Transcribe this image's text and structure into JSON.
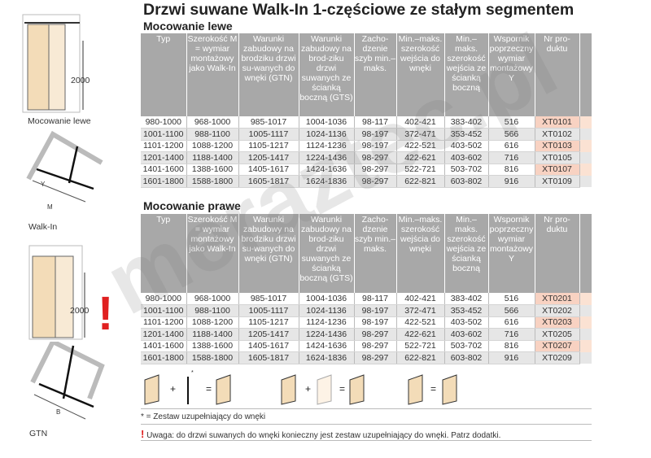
{
  "title": "Drzwi suwane Walk-In 1-częściowe ze stałym segmentem",
  "headers": [
    "Typ",
    "Szerokość M = wymiar montażowy jako Walk-In",
    "Warunki zabudowy na brodziku drzwi su-wanych do wnęki (GTN)",
    "Warunki zabudowy na brod-ziku drzwi suwanych ze ścianką boczną (GTS)",
    "Zacho-dzenie szyb min.–maks.",
    "Min.–maks. szerokość wejścia do wnęki",
    "Min.–maks. szerokość wejścia ze ścianką boczną",
    "Wspornik poprzeczny wymiar montażowy Y",
    "Nr pro-duktu"
  ],
  "sections": [
    {
      "heading": "Mocowanie lewe",
      "rows": [
        [
          "980-1000",
          "968-1000",
          "985-1017",
          "1004-1036",
          "98-117",
          "402-421",
          "383-402",
          "516",
          "XT0101"
        ],
        [
          "1001-1100",
          "988-1100",
          "1005-1117",
          "1024-1136",
          "98-197",
          "372-471",
          "353-452",
          "566",
          "XT0102"
        ],
        [
          "1101-1200",
          "1088-1200",
          "1105-1217",
          "1124-1236",
          "98-197",
          "422-521",
          "403-502",
          "616",
          "XT0103"
        ],
        [
          "1201-1400",
          "1188-1400",
          "1205-1417",
          "1224-1436",
          "98-297",
          "422-621",
          "403-602",
          "716",
          "XT0105"
        ],
        [
          "1401-1600",
          "1388-1600",
          "1405-1617",
          "1424-1636",
          "98-297",
          "522-721",
          "503-702",
          "816",
          "XT0107"
        ],
        [
          "1601-1800",
          "1588-1800",
          "1605-1817",
          "1624-1836",
          "98-297",
          "622-821",
          "603-802",
          "916",
          "XT0109"
        ]
      ]
    },
    {
      "heading": "Mocowanie prawe",
      "rows": [
        [
          "980-1000",
          "968-1000",
          "985-1017",
          "1004-1036",
          "98-117",
          "402-421",
          "383-402",
          "516",
          "XT0201"
        ],
        [
          "1001-1100",
          "988-1100",
          "1005-1117",
          "1024-1136",
          "98-197",
          "372-471",
          "353-452",
          "566",
          "XT0202"
        ],
        [
          "1101-1200",
          "1088-1200",
          "1105-1217",
          "1124-1236",
          "98-197",
          "422-521",
          "403-502",
          "616",
          "XT0203"
        ],
        [
          "1201-1400",
          "1188-1400",
          "1205-1417",
          "1224-1436",
          "98-297",
          "422-621",
          "403-602",
          "716",
          "XT0205"
        ],
        [
          "1401-1600",
          "1388-1600",
          "1405-1617",
          "1424-1636",
          "98-297",
          "522-721",
          "503-702",
          "816",
          "XT0207"
        ],
        [
          "1601-1800",
          "1588-1800",
          "1605-1817",
          "1624-1836",
          "98-297",
          "622-821",
          "603-802",
          "916",
          "XT0209"
        ]
      ]
    }
  ],
  "left_labels": {
    "lewe": "Mocowanie lewe",
    "walkin": "Walk-In",
    "gtn": "GTN",
    "dim_2000a": "2000",
    "dim_2000b": "2000",
    "dim_y": "Y",
    "dim_m": "M",
    "dim_b": "B"
  },
  "combos": {
    "plus": "+",
    "equals": "=",
    "star": "*"
  },
  "footnote": "* = Zestaw uzupełniający do wnęki",
  "warning_mark": "!",
  "warning": "Uwaga: do drzwi suwanych do wnęki konieczny jest zestaw uzupełniający do wnęki. Patrz dodatki.",
  "watermark": "meraztec.pl",
  "colors": {
    "header": "#a8a8a8",
    "product": "#f8d2c2",
    "warning": "#e02020",
    "door": "#f3dcb8"
  }
}
